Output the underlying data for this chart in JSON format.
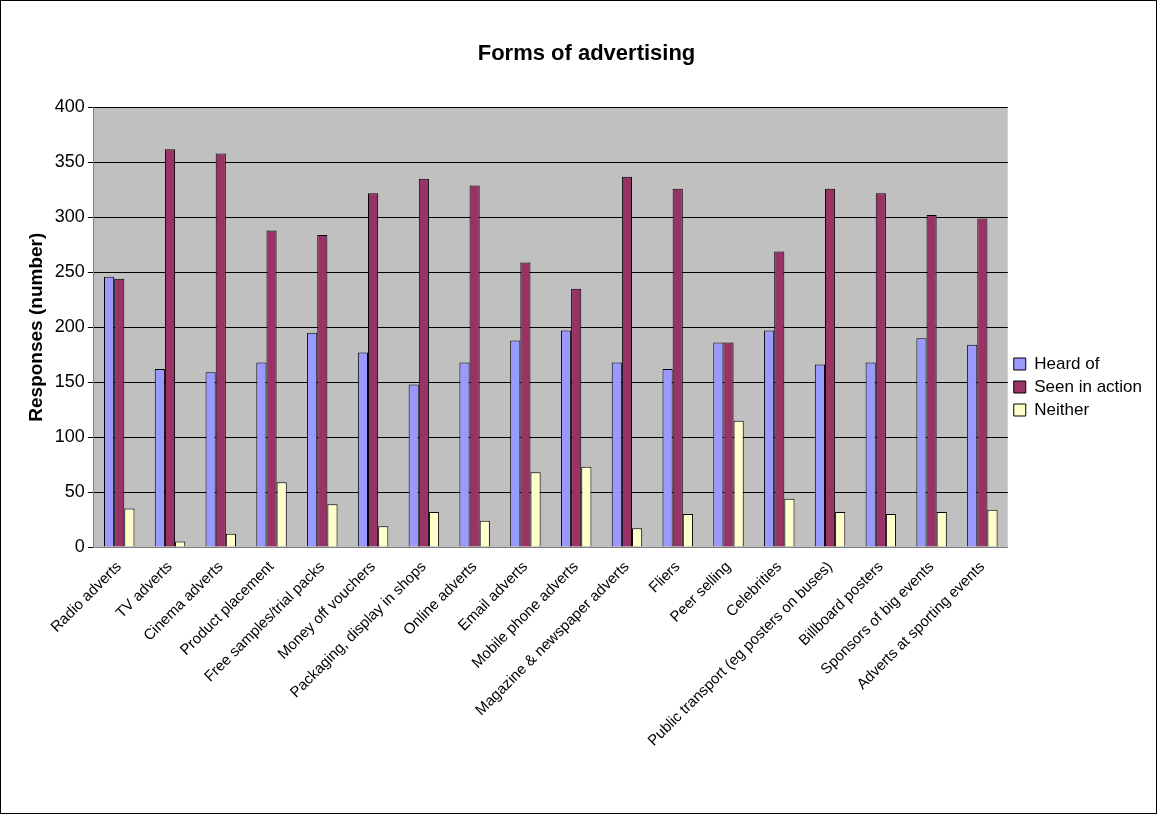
{
  "chart_data": {
    "type": "bar",
    "title": "Forms of advertising",
    "ylabel": "Responses (number)",
    "categories": [
      "Radio adverts",
      "TV adverts",
      "Cinema adverts",
      "Product placement",
      "Free samples/trial packs",
      "Money off vouchers",
      "Packaging, display in shops",
      "Online adverts",
      "Email adverts",
      "Mobile phone adverts",
      "Magazine & newspaper adverts",
      "Fliers",
      "Peer selling",
      "Celebrities",
      "Public transport (eg posters on buses)",
      "Billboard posters",
      "Sponsors of big events",
      "Adverts at sporting events"
    ],
    "series": [
      {
        "name": "Heard of",
        "color": "#9999ff",
        "values": [
          246,
          162,
          159,
          168,
          195,
          177,
          148,
          168,
          188,
          197,
          168,
          162,
          186,
          197,
          166,
          168,
          190,
          184
        ]
      },
      {
        "name": "Seen in action",
        "color": "#993366",
        "values": [
          244,
          362,
          358,
          288,
          284,
          322,
          335,
          329,
          259,
          235,
          337,
          326,
          186,
          269,
          326,
          322,
          302,
          299
        ]
      },
      {
        "name": "Neither",
        "color": "#ffffcc",
        "values": [
          35,
          5,
          12,
          59,
          39,
          19,
          32,
          24,
          68,
          73,
          17,
          30,
          115,
          44,
          32,
          30,
          32,
          34
        ]
      }
    ],
    "ylim": [
      0,
      400
    ],
    "yticks": [
      0,
      50,
      100,
      150,
      200,
      250,
      300,
      350,
      400
    ],
    "grid": "y",
    "legend": "right"
  }
}
